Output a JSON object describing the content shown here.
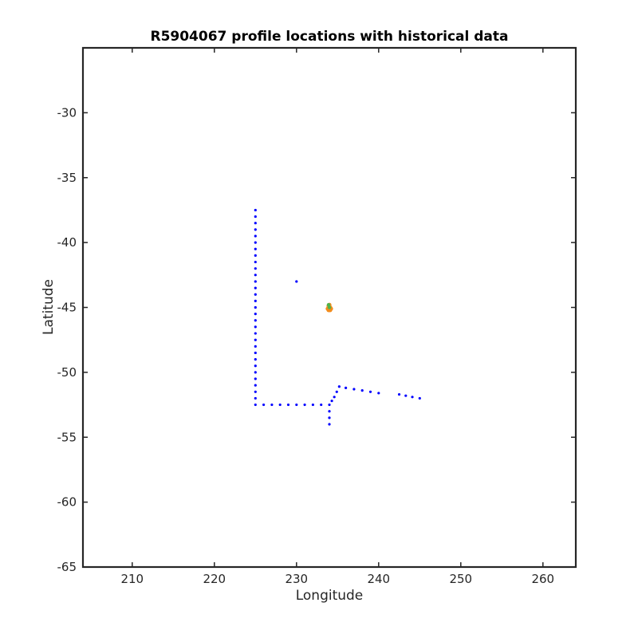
{
  "chart_data": {
    "type": "scatter",
    "title": "R5904067 profile locations with historical data",
    "xlabel": "Longitude",
    "ylabel": "Latitude",
    "xlim": [
      204,
      264
    ],
    "ylim": [
      -65,
      -25
    ],
    "xticks": [
      210,
      220,
      230,
      240,
      250,
      260
    ],
    "yticks": [
      -65,
      -60,
      -55,
      -50,
      -45,
      -40,
      -35,
      -30
    ],
    "grid": false,
    "legend": "none",
    "colors": {
      "historical": "#0000ff",
      "profile_cluster": "#f28c1c",
      "profile_cluster_accent": "#4db34d",
      "axes": "#262626"
    },
    "series": [
      {
        "values": [
          [
            225.0,
            -37.5
          ],
          [
            225.0,
            -38.0
          ],
          [
            225.0,
            -38.5
          ],
          [
            225.0,
            -39.0
          ],
          [
            225.0,
            -39.5
          ],
          [
            225.0,
            -40.0
          ],
          [
            225.0,
            -40.5
          ],
          [
            225.0,
            -41.0
          ],
          [
            225.0,
            -41.5
          ],
          [
            225.0,
            -42.0
          ],
          [
            225.0,
            -42.5
          ],
          [
            225.0,
            -43.0
          ],
          [
            225.0,
            -43.5
          ],
          [
            225.0,
            -44.0
          ],
          [
            225.0,
            -44.5
          ],
          [
            225.0,
            -45.0
          ],
          [
            225.0,
            -45.5
          ],
          [
            225.0,
            -46.0
          ],
          [
            225.0,
            -46.5
          ],
          [
            225.0,
            -47.0
          ],
          [
            225.0,
            -47.5
          ],
          [
            225.0,
            -48.0
          ],
          [
            225.0,
            -48.5
          ],
          [
            225.0,
            -49.0
          ],
          [
            225.0,
            -49.5
          ],
          [
            225.0,
            -50.0
          ],
          [
            225.0,
            -50.5
          ],
          [
            225.0,
            -51.0
          ],
          [
            225.0,
            -51.5
          ],
          [
            225.0,
            -52.0
          ],
          [
            225.0,
            -52.5
          ],
          [
            226.0,
            -52.5
          ],
          [
            227.0,
            -52.5
          ],
          [
            228.0,
            -52.5
          ],
          [
            229.0,
            -52.5
          ],
          [
            230.0,
            -52.5
          ],
          [
            231.0,
            -52.5
          ],
          [
            232.0,
            -52.5
          ],
          [
            233.0,
            -52.5
          ],
          [
            234.0,
            -52.5
          ],
          [
            234.0,
            -53.0
          ],
          [
            234.0,
            -53.5
          ],
          [
            234.0,
            -54.0
          ],
          [
            234.3,
            -52.2
          ],
          [
            234.6,
            -51.9
          ],
          [
            234.9,
            -51.5
          ],
          [
            235.2,
            -51.1
          ],
          [
            236.0,
            -51.2
          ],
          [
            237.0,
            -51.3
          ],
          [
            238.0,
            -51.4
          ],
          [
            239.0,
            -51.5
          ],
          [
            240.0,
            -51.6
          ],
          [
            242.5,
            -51.7
          ],
          [
            243.3,
            -51.8
          ],
          [
            244.1,
            -51.9
          ],
          [
            245.0,
            -52.0
          ],
          [
            230.0,
            -43.0
          ],
          [
            234.1,
            -45.1
          ],
          [
            233.9,
            -45.0
          ]
        ]
      },
      {
        "values": [
          [
            233.9,
            -44.9
          ],
          [
            234.1,
            -45.0
          ],
          [
            234.0,
            -45.2
          ],
          [
            233.8,
            -45.1
          ],
          [
            234.2,
            -45.1
          ],
          [
            234.0,
            -44.8
          ],
          [
            233.9,
            -45.2
          ],
          [
            234.1,
            -45.2
          ]
        ]
      },
      {
        "values": [
          [
            234.0,
            -45.0
          ],
          [
            233.9,
            -44.8
          ]
        ]
      }
    ]
  }
}
